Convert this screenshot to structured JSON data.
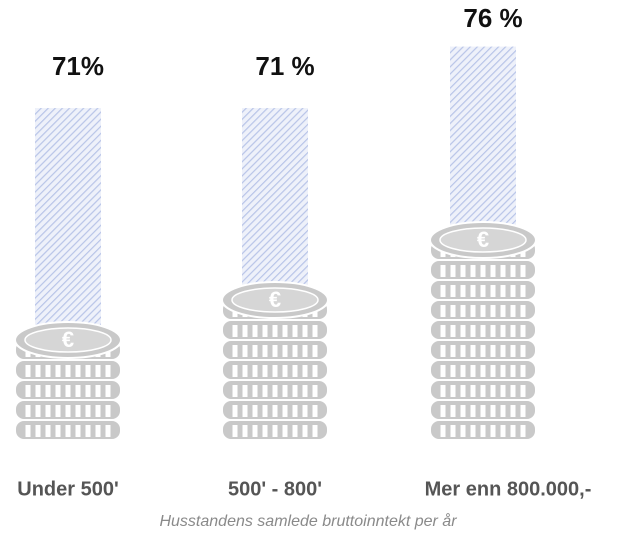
{
  "chart_data": {
    "type": "bar",
    "categories": [
      "Under 500'",
      "500' - 800'",
      "Mer enn 800.000,-"
    ],
    "values": [
      71,
      71,
      76
    ],
    "value_labels": [
      "71%",
      "71 %",
      "76 %"
    ],
    "ylim": [
      44,
      78
    ],
    "color": "#b8c4e8",
    "x_label": "Husstandens samlede bruttoinntekt per år"
  }
}
